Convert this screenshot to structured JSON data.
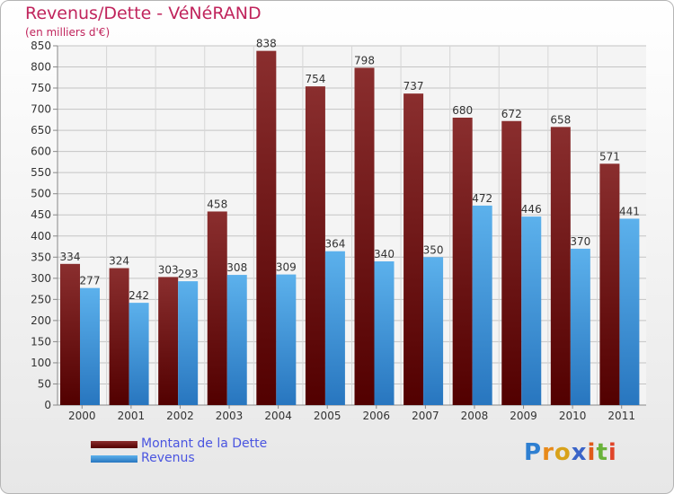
{
  "chart_data": {
    "type": "bar",
    "title": "Revenus/Dette - VéNéRAND",
    "subtitle": "(en milliers d'€)",
    "categories": [
      "2000",
      "2001",
      "2002",
      "2003",
      "2004",
      "2005",
      "2006",
      "2007",
      "2008",
      "2009",
      "2010",
      "2011"
    ],
    "series": [
      {
        "name": "Montant de la Dette",
        "color": "#7a1212",
        "values": [
          334,
          324,
          303,
          458,
          838,
          754,
          798,
          737,
          680,
          672,
          658,
          571
        ]
      },
      {
        "name": "Revenus",
        "color": "#3a94de",
        "values": [
          277,
          242,
          293,
          308,
          309,
          364,
          340,
          350,
          472,
          446,
          370,
          441
        ]
      }
    ],
    "ylim": [
      0,
      850
    ],
    "ytick_step": 50,
    "grid": true,
    "legend_position": "bottom-left"
  },
  "branding": {
    "letters": [
      "P",
      "r",
      "o",
      "x",
      "i",
      "t",
      "i"
    ],
    "letter_colors": [
      "#2e7fd1",
      "#e88a1a",
      "#d8a21a",
      "#3a64c8",
      "#e05a1a",
      "#6ab23a",
      "#e0452a"
    ]
  }
}
